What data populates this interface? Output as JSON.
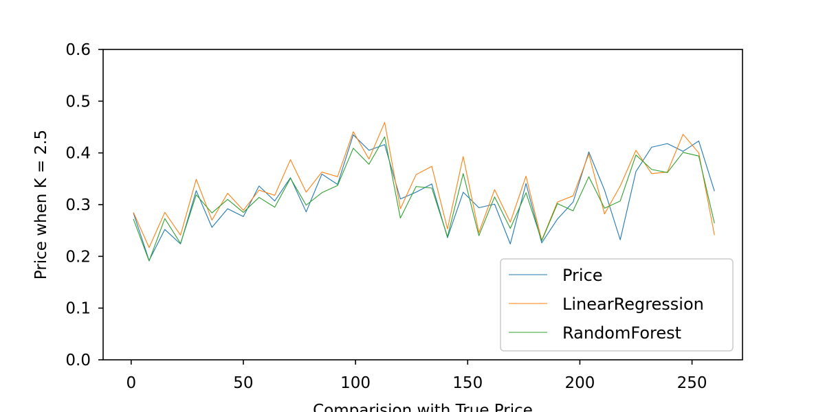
{
  "chart_data": {
    "type": "line",
    "title": "",
    "xlabel": "Comparision with True Price",
    "ylabel": "Price when K = 2.5",
    "xlim": [
      -12.5,
      272.5
    ],
    "ylim": [
      0.0,
      0.6
    ],
    "xticks": [
      0,
      50,
      100,
      150,
      200,
      250
    ],
    "yticks": [
      0.0,
      0.1,
      0.2,
      0.3,
      0.4,
      0.5,
      0.6
    ],
    "xtick_labels": [
      "0",
      "50",
      "100",
      "150",
      "200",
      "250"
    ],
    "ytick_labels": [
      "0.0",
      "0.1",
      "0.2",
      "0.3",
      "0.4",
      "0.5",
      "0.6"
    ],
    "grid": false,
    "legend_position": "bottom-right",
    "x": [
      1,
      8,
      15,
      22,
      29,
      36,
      43,
      50,
      57,
      64,
      71,
      78,
      85,
      92,
      99,
      106,
      113,
      120,
      127,
      134,
      141,
      148,
      155,
      162,
      169,
      176,
      183,
      190,
      197,
      204,
      211,
      218,
      225,
      232,
      239,
      246,
      253,
      260
    ],
    "series": [
      {
        "name": "Price",
        "color": "#1f77b4",
        "values": [
          0.284,
          0.192,
          0.252,
          0.224,
          0.327,
          0.256,
          0.292,
          0.277,
          0.336,
          0.307,
          0.352,
          0.286,
          0.359,
          0.339,
          0.435,
          0.405,
          0.416,
          0.311,
          0.324,
          0.34,
          0.236,
          0.324,
          0.294,
          0.301,
          0.224,
          0.341,
          0.226,
          0.272,
          0.305,
          0.402,
          0.328,
          0.232,
          0.364,
          0.411,
          0.418,
          0.403,
          0.423,
          0.326
        ]
      },
      {
        "name": "LinearRegression",
        "color": "#ff7f0e",
        "values": [
          0.285,
          0.217,
          0.285,
          0.241,
          0.349,
          0.27,
          0.322,
          0.289,
          0.328,
          0.318,
          0.387,
          0.324,
          0.363,
          0.354,
          0.441,
          0.388,
          0.459,
          0.292,
          0.358,
          0.374,
          0.253,
          0.393,
          0.246,
          0.329,
          0.266,
          0.355,
          0.231,
          0.305,
          0.317,
          0.398,
          0.282,
          0.336,
          0.405,
          0.36,
          0.363,
          0.436,
          0.4,
          0.241
        ]
      },
      {
        "name": "RandomForest",
        "color": "#2ca02c",
        "values": [
          0.272,
          0.191,
          0.273,
          0.225,
          0.319,
          0.284,
          0.31,
          0.285,
          0.314,
          0.295,
          0.351,
          0.299,
          0.323,
          0.337,
          0.409,
          0.378,
          0.431,
          0.274,
          0.335,
          0.332,
          0.238,
          0.36,
          0.24,
          0.315,
          0.254,
          0.323,
          0.23,
          0.302,
          0.288,
          0.354,
          0.293,
          0.307,
          0.396,
          0.368,
          0.362,
          0.401,
          0.394,
          0.264
        ]
      }
    ]
  }
}
